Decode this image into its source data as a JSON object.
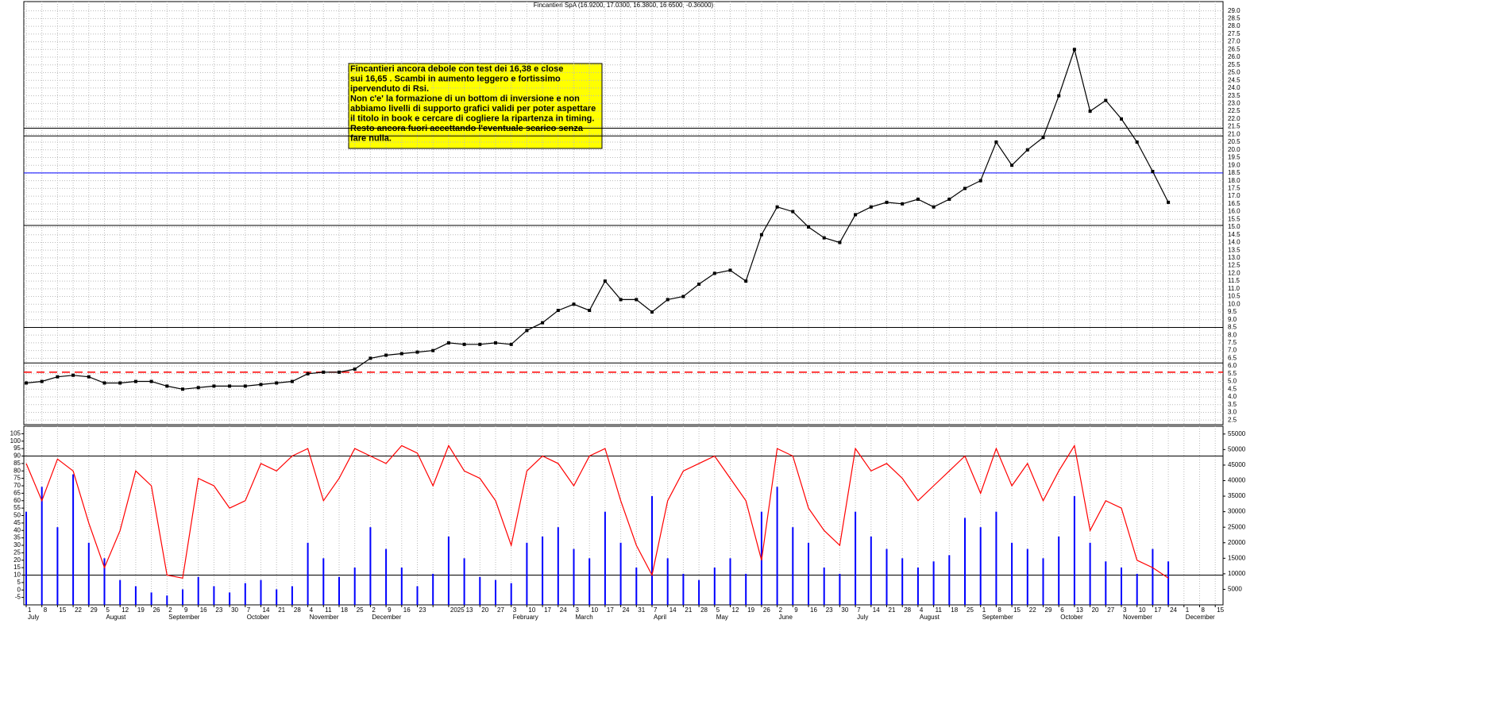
{
  "chart_data": {
    "type": "price-rsi-volume",
    "title": "Fincantieri SpA (16.9200, 17.0300, 16.3800, 16.6500, -0.36000)",
    "annotation": [
      "Fincantieri ancora debole con test dei 16,38 e close",
      "sui 16,65 . Scambi in aumento leggero e fortissimo",
      "ipervenduto di Rsi.",
      "Non c'e' la formazione di un bottom di inversione e non",
      "abbiamo livelli di supporto grafici validi per poter aspettare",
      "il titolo in book e cercare di cogliere la ripartenza in timing.",
      "Resto ancora fuori accettando l'eventuale scarico senza",
      "fare nulla."
    ],
    "categories": [
      "1",
      "8",
      "15",
      "22",
      "29",
      "5",
      "12",
      "19",
      "26",
      "2",
      "9",
      "16",
      "23",
      "30",
      "7",
      "14",
      "21",
      "28",
      "4",
      "11",
      "18",
      "25",
      "2",
      "9",
      "16",
      "23",
      null,
      "2025",
      "13",
      "20",
      "27",
      "3",
      "10",
      "17",
      "24",
      "3",
      "10",
      "17",
      "24",
      "31",
      "7",
      "14",
      "21",
      "28",
      "5",
      "12",
      "19",
      "26",
      "2",
      "9",
      "16",
      "23",
      "30",
      "7",
      "14",
      "21",
      "28",
      "4",
      "11",
      "18",
      "25",
      "1",
      "8",
      "15",
      "22",
      "29",
      "6",
      "13",
      "20",
      "27",
      "3",
      "10",
      "17",
      "24",
      "1",
      "8",
      "15"
    ],
    "category_months": [
      "July",
      null,
      null,
      null,
      null,
      "August",
      null,
      null,
      null,
      "September",
      null,
      null,
      null,
      null,
      "October",
      null,
      null,
      null,
      "November",
      null,
      null,
      null,
      "December",
      null,
      null,
      null,
      null,
      null,
      null,
      null,
      null,
      "February",
      null,
      null,
      null,
      "March",
      null,
      null,
      null,
      null,
      "April",
      null,
      null,
      null,
      "May",
      null,
      null,
      null,
      "June",
      null,
      null,
      null,
      null,
      "July",
      null,
      null,
      null,
      "August",
      null,
      null,
      null,
      "September",
      null,
      null,
      null,
      null,
      "October",
      null,
      null,
      null,
      "November",
      null,
      null,
      null,
      "December",
      null,
      null
    ],
    "series": [
      {
        "name": "Close",
        "axis": "y",
        "color": "#000000",
        "values": [
          4.9,
          5.0,
          5.3,
          5.4,
          5.3,
          4.9,
          4.9,
          5.0,
          5.0,
          4.7,
          4.5,
          4.6,
          4.7,
          4.7,
          4.7,
          4.8,
          4.9,
          5.0,
          5.5,
          5.6,
          5.6,
          5.8,
          6.5,
          6.7,
          6.8,
          6.9,
          7.0,
          7.5,
          7.4,
          7.4,
          7.5,
          7.4,
          8.3,
          8.8,
          9.6,
          10.0,
          9.6,
          11.5,
          10.3,
          10.3,
          9.5,
          10.3,
          10.5,
          11.3,
          12.0,
          12.2,
          11.5,
          14.5,
          16.3,
          16.0,
          15.0,
          14.3,
          14.0,
          15.8,
          16.3,
          16.6,
          16.5,
          16.8,
          16.3,
          16.8,
          17.5,
          18.0,
          20.5,
          19.0,
          20.0,
          20.8,
          23.5,
          26.5,
          22.5,
          23.2,
          22.0,
          20.5,
          18.6,
          16.6,
          null,
          null,
          null
        ]
      },
      {
        "name": "RSI",
        "axis": "rsi",
        "color": "#ff0000",
        "values": [
          85,
          60,
          88,
          80,
          45,
          15,
          40,
          80,
          70,
          10,
          8,
          75,
          70,
          55,
          60,
          85,
          80,
          90,
          95,
          60,
          75,
          95,
          90,
          85,
          97,
          92,
          70,
          97,
          80,
          75,
          60,
          30,
          80,
          90,
          85,
          70,
          90,
          95,
          60,
          30,
          10,
          60,
          80,
          85,
          90,
          75,
          60,
          20,
          95,
          90,
          55,
          40,
          30,
          95,
          80,
          85,
          75,
          60,
          70,
          80,
          90,
          65,
          95,
          70,
          85,
          60,
          80,
          97,
          40,
          60,
          55,
          20,
          15,
          8,
          null,
          null,
          null
        ]
      },
      {
        "name": "Volume",
        "axis": "y2",
        "color": "#0000ff",
        "values": [
          30000,
          38000,
          25000,
          42000,
          20000,
          15000,
          8000,
          6000,
          4000,
          3000,
          5000,
          9000,
          6000,
          4000,
          7000,
          8000,
          5000,
          6000,
          20000,
          15000,
          9000,
          12000,
          25000,
          18000,
          12000,
          6000,
          10000,
          22000,
          15000,
          9000,
          8000,
          7000,
          20000,
          22000,
          25000,
          18000,
          15000,
          30000,
          20000,
          12000,
          35000,
          15000,
          10000,
          8000,
          12000,
          15000,
          10000,
          30000,
          38000,
          25000,
          20000,
          12000,
          10000,
          30000,
          22000,
          18000,
          15000,
          12000,
          14000,
          16000,
          28000,
          25000,
          30000,
          20000,
          18000,
          15000,
          22000,
          35000,
          20000,
          14000,
          12000,
          10000,
          18000,
          14000,
          null,
          null,
          null
        ]
      }
    ],
    "levels": [
      {
        "value": 8.5,
        "color": "#000000"
      },
      {
        "value": 6.2,
        "color": "#000000"
      },
      {
        "value": 5.6,
        "color": "#ff0000",
        "dashed": true
      },
      {
        "value": 15.1,
        "color": "#000000"
      },
      {
        "value": 18.5,
        "color": "#0000ff"
      },
      {
        "value": 20.9,
        "color": "#000000"
      },
      {
        "value": 21.4,
        "color": "#000000"
      }
    ],
    "rsi_levels": [
      10,
      90
    ],
    "ylim": [
      2.2,
      29.6
    ],
    "yticks": [
      2.5,
      {
        "value": 3,
        "label": "3.0"
      },
      3.5,
      {
        "value": 4,
        "label": "4.0"
      },
      4.5,
      {
        "value": 5,
        "label": "5.0"
      },
      5.5,
      {
        "value": 6,
        "label": "6.0"
      },
      6.5,
      {
        "value": 7,
        "label": "7.0"
      },
      7.5,
      {
        "value": 8,
        "label": "8.0"
      },
      8.5,
      {
        "value": 9,
        "label": "9.0"
      },
      9.5,
      {
        "value": 10,
        "label": "10.0"
      },
      10.5,
      {
        "value": 11,
        "label": "11.0"
      },
      11.5,
      {
        "value": 12,
        "label": "12.0"
      },
      12.5,
      {
        "value": 13,
        "label": "13.0"
      },
      13.5,
      {
        "value": 14,
        "label": "14.0"
      },
      14.5,
      {
        "value": 15,
        "label": "15.0"
      },
      15.5,
      {
        "value": 16,
        "label": "16.0"
      },
      16.5,
      {
        "value": 17,
        "label": "17.0"
      },
      17.5,
      {
        "value": 18,
        "label": "18.0"
      },
      18.5,
      {
        "value": 19,
        "label": "19.0"
      },
      19.5,
      {
        "value": 20,
        "label": "20.0"
      },
      20.5,
      {
        "value": 21,
        "label": "21.0"
      },
      21.5,
      {
        "value": 22,
        "label": "22.0"
      },
      22.5,
      {
        "value": 23,
        "label": "23.0"
      },
      23.5,
      {
        "value": 24,
        "label": "24.0"
      },
      24.5,
      {
        "value": 25,
        "label": "25.0"
      },
      25.5,
      {
        "value": 26,
        "label": "26.0"
      },
      26.5,
      {
        "value": 27,
        "label": "27.0"
      },
      27.5,
      {
        "value": 28,
        "label": "28.0"
      },
      28.5,
      {
        "value": 29,
        "label": "29.0"
      }
    ],
    "rsilim": [
      -10,
      110
    ],
    "rsiticks": [
      -5,
      0,
      5,
      10,
      15,
      20,
      25,
      30,
      35,
      40,
      45,
      50,
      55,
      60,
      65,
      70,
      75,
      80,
      85,
      90,
      95,
      100,
      105
    ],
    "y2lim": [
      0,
      57500
    ],
    "y2ticks": [
      5000,
      10000,
      15000,
      20000,
      25000,
      30000,
      35000,
      40000,
      45000,
      50000,
      55000
    ],
    "grid": true
  }
}
